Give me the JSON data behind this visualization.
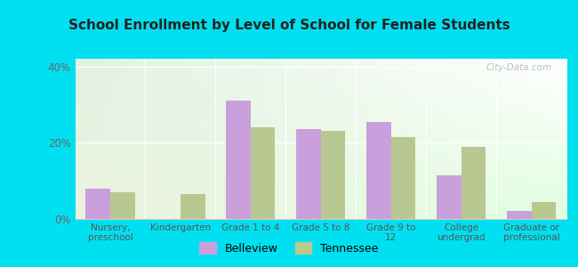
{
  "title": "School Enrollment by Level of School for Female Students",
  "categories": [
    "Nursery,\npreschool",
    "Kindergarten",
    "Grade 1 to 4",
    "Grade 5 to 8",
    "Grade 9 to\n12",
    "College\nundergrad",
    "Graduate or\nprofessional"
  ],
  "belleview": [
    8.0,
    0.0,
    31.0,
    23.5,
    25.5,
    11.5,
    2.0
  ],
  "tennessee": [
    7.0,
    6.5,
    24.0,
    23.0,
    21.5,
    19.0,
    4.5
  ],
  "belleview_color": "#c9a0dc",
  "tennessee_color": "#b8c890",
  "background_outer": "#00e0f0",
  "ylim": [
    0,
    42
  ],
  "yticks": [
    0,
    20,
    40
  ],
  "ytick_labels": [
    "0%",
    "20%",
    "40%"
  ],
  "bar_width": 0.35,
  "legend_belleview": "Belleview",
  "legend_tennessee": "Tennessee"
}
